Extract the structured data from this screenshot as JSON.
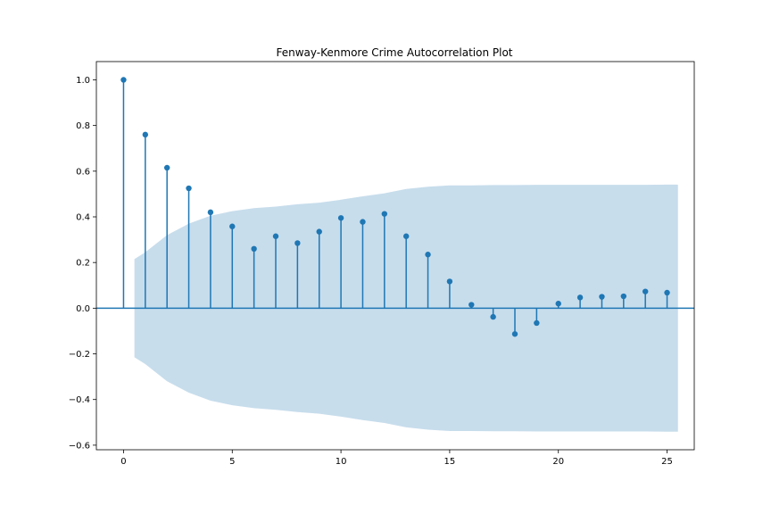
{
  "chart_data": {
    "type": "stem",
    "title": "Fenway-Kenmore Crime Autocorrelation Plot",
    "xlabel": "",
    "ylabel": "",
    "xlim": [
      -1.25,
      26.25
    ],
    "ylim": [
      -0.62,
      1.08
    ],
    "x_ticks": [
      0,
      5,
      10,
      15,
      20,
      25
    ],
    "x_tick_labels": [
      "0",
      "5",
      "10",
      "15",
      "20",
      "25"
    ],
    "y_ticks": [
      -0.6,
      -0.4,
      -0.2,
      0.0,
      0.2,
      0.4,
      0.6,
      0.8,
      1.0
    ],
    "y_tick_labels": [
      "−0.6",
      "−0.4",
      "−0.2",
      "0.0",
      "0.2",
      "0.4",
      "0.6",
      "0.8",
      "1.0"
    ],
    "grid": false,
    "lags": [
      0,
      1,
      2,
      3,
      4,
      5,
      6,
      7,
      8,
      9,
      10,
      11,
      12,
      13,
      14,
      15,
      16,
      17,
      18,
      19,
      20,
      21,
      22,
      23,
      24,
      25
    ],
    "acf": [
      1.0,
      0.76,
      0.615,
      0.525,
      0.42,
      0.358,
      0.26,
      0.315,
      0.285,
      0.335,
      0.395,
      0.378,
      0.413,
      0.315,
      0.235,
      0.117,
      0.015,
      -0.038,
      -0.113,
      -0.065,
      0.02,
      0.047,
      0.05,
      0.052,
      0.073,
      0.068
    ],
    "confidence_band": {
      "x": [
        0.5,
        1,
        2,
        3,
        4,
        5,
        6,
        7,
        8,
        9,
        10,
        11,
        12,
        13,
        14,
        15,
        16,
        17,
        18,
        19,
        20,
        21,
        22,
        23,
        24,
        25,
        25.5
      ],
      "upper": [
        0.215,
        0.245,
        0.32,
        0.37,
        0.405,
        0.425,
        0.438,
        0.445,
        0.455,
        0.462,
        0.475,
        0.49,
        0.503,
        0.522,
        0.532,
        0.538,
        0.538,
        0.539,
        0.539,
        0.54,
        0.54,
        0.54,
        0.54,
        0.54,
        0.54,
        0.541,
        0.541
      ]
    },
    "colors": {
      "marker": "#1f77b4",
      "band": "#1f77b4",
      "band_opacity": 0.25,
      "zero_line": "#1f77b4"
    }
  }
}
